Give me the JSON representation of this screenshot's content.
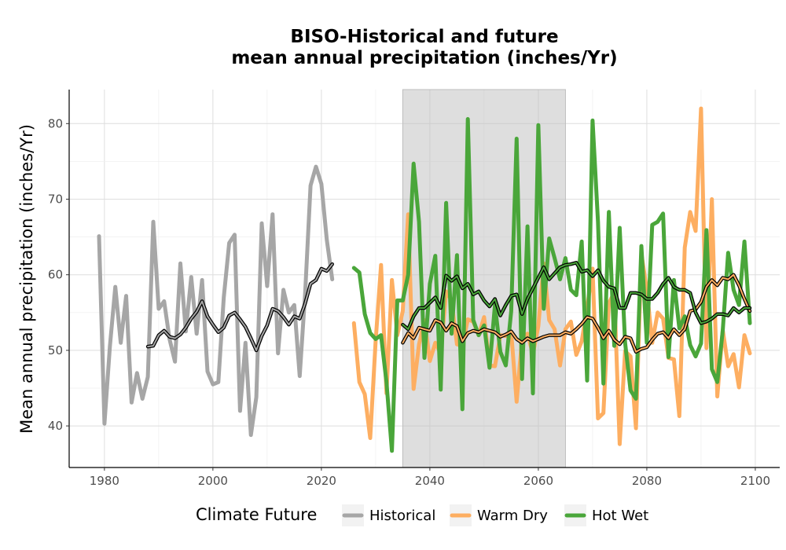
{
  "chart_data": {
    "type": "line",
    "title_lines": [
      "BISO-Historical and future",
      "mean annual precipitation (inches/Yr)"
    ],
    "xlabel": "",
    "ylabel": "Mean annual precipitation (inches/Yr)",
    "xlim": [
      1973.5,
      2104.5
    ],
    "ylim": [
      34.5,
      84.5
    ],
    "x_ticks": [
      1980,
      2000,
      2020,
      2040,
      2060,
      2080,
      2100
    ],
    "y_ticks": [
      40,
      50,
      60,
      70,
      80
    ],
    "grid": true,
    "reference_period": [
      2035,
      2065
    ],
    "legend": {
      "title": "Climate Future",
      "placement": "bottom",
      "entries": [
        {
          "label": "Historical",
          "color": "#a6a6a6"
        },
        {
          "label": "Warm Dry",
          "color": "#fdae61"
        },
        {
          "label": "Hot Wet",
          "color": "#4aa63a"
        }
      ]
    },
    "series": [
      {
        "name": "Historical",
        "color": "#a6a6a6",
        "x": [
          1979,
          1980,
          1981,
          1982,
          1983,
          1984,
          1985,
          1986,
          1987,
          1988,
          1989,
          1990,
          1991,
          1992,
          1993,
          1994,
          1995,
          1996,
          1997,
          1998,
          1999,
          2000,
          2001,
          2002,
          2003,
          2004,
          2005,
          2006,
          2007,
          2008,
          2009,
          2010,
          2011,
          2012,
          2013,
          2014,
          2015,
          2016,
          2017,
          2018,
          2019,
          2020,
          2021,
          2022
        ],
        "y": [
          65.1,
          40.3,
          50.5,
          58.4,
          51.0,
          57.2,
          43.1,
          47.0,
          43.6,
          46.5,
          67.0,
          55.5,
          56.5,
          51.5,
          48.5,
          61.5,
          52.5,
          59.7,
          52.2,
          59.3,
          47.2,
          45.5,
          45.8,
          57.0,
          64.2,
          65.3,
          42.0,
          51.0,
          38.8,
          43.8,
          66.8,
          58.5,
          68.0,
          49.6,
          58.0,
          55.0,
          56.0,
          46.6,
          57.5,
          71.8,
          74.3,
          72.0,
          64.6,
          59.4
        ]
      },
      {
        "name": "Historical rolling mean",
        "color": "#a6a6a6",
        "x": [
          1988,
          1989,
          1990,
          1991,
          1992,
          1993,
          1994,
          1995,
          1996,
          1997,
          1998,
          1999,
          2000,
          2001,
          2002,
          2003,
          2004,
          2005,
          2006,
          2007,
          2008,
          2009,
          2010,
          2011,
          2012,
          2013,
          2014,
          2015,
          2016,
          2017,
          2018,
          2019,
          2020,
          2021,
          2022
        ],
        "y": [
          50.5,
          50.6,
          52.0,
          52.6,
          51.8,
          51.6,
          52.1,
          53.0,
          54.2,
          55.1,
          56.5,
          54.5,
          53.4,
          52.4,
          53.0,
          54.6,
          55.0,
          54.1,
          53.1,
          51.6,
          50.0,
          51.9,
          53.3,
          55.5,
          55.2,
          54.4,
          53.4,
          54.5,
          54.2,
          56.2,
          58.8,
          59.3,
          60.8,
          60.5,
          61.4
        ]
      },
      {
        "name": "Warm Dry",
        "color": "#fdae61",
        "x": [
          2026,
          2027,
          2028,
          2029,
          2030,
          2031,
          2032,
          2033,
          2034,
          2035,
          2036,
          2037,
          2038,
          2039,
          2040,
          2041,
          2042,
          2043,
          2044,
          2045,
          2046,
          2047,
          2048,
          2049,
          2050,
          2051,
          2052,
          2053,
          2054,
          2055,
          2056,
          2057,
          2058,
          2059,
          2060,
          2061,
          2062,
          2063,
          2064,
          2065,
          2066,
          2067,
          2068,
          2069,
          2070,
          2071,
          2072,
          2073,
          2074,
          2075,
          2076,
          2077,
          2078,
          2079,
          2080,
          2081,
          2082,
          2083,
          2084,
          2085,
          2086,
          2087,
          2088,
          2089,
          2090,
          2091,
          2092,
          2093,
          2094,
          2095,
          2096,
          2097,
          2098,
          2099
        ],
        "y": [
          53.6,
          45.8,
          44.2,
          38.4,
          51.2,
          61.3,
          44.3,
          59.3,
          52.0,
          55.2,
          68.0,
          44.9,
          50.8,
          54.0,
          48.6,
          51.0,
          49.6,
          57.8,
          56.6,
          50.8,
          50.6,
          54.1,
          53.8,
          52.0,
          54.4,
          48.0,
          47.9,
          52.0,
          51.9,
          52.4,
          43.2,
          51.6,
          52.2,
          49.5,
          53.2,
          61.5,
          54.0,
          52.8,
          48.0,
          52.8,
          53.8,
          49.4,
          51.2,
          55.6,
          60.8,
          41.0,
          41.7,
          56.2,
          57.7,
          37.6,
          49.9,
          49.2,
          39.7,
          62.8,
          58.0,
          51.0,
          55.0,
          54.2,
          49.0,
          48.8,
          41.3,
          63.6,
          68.3,
          65.8,
          82.0,
          50.3,
          70.0,
          43.9,
          52.7,
          47.9,
          49.5,
          45.1,
          52.0,
          49.6
        ]
      },
      {
        "name": "Warm Dry rolling mean",
        "color": "#fdae61",
        "x": [
          2035,
          2036,
          2037,
          2038,
          2039,
          2040,
          2041,
          2042,
          2043,
          2044,
          2045,
          2046,
          2047,
          2048,
          2049,
          2050,
          2051,
          2052,
          2053,
          2054,
          2055,
          2056,
          2057,
          2058,
          2059,
          2060,
          2061,
          2062,
          2063,
          2064,
          2065,
          2066,
          2067,
          2068,
          2069,
          2070,
          2071,
          2072,
          2073,
          2074,
          2075,
          2076,
          2077,
          2078,
          2079,
          2080,
          2081,
          2082,
          2083,
          2084,
          2085,
          2086,
          2087,
          2088,
          2089,
          2090,
          2091,
          2092,
          2093,
          2094,
          2095,
          2096,
          2097,
          2098,
          2099
        ],
        "y": [
          51.0,
          52.3,
          51.6,
          53.0,
          52.8,
          52.6,
          54.0,
          53.7,
          52.6,
          53.6,
          53.2,
          51.2,
          52.3,
          52.6,
          52.4,
          52.8,
          52.6,
          52.4,
          51.8,
          52.1,
          52.5,
          51.5,
          51.0,
          51.6,
          51.2,
          51.5,
          51.8,
          52.0,
          52.0,
          52.0,
          52.4,
          52.2,
          52.8,
          53.5,
          54.4,
          54.2,
          53.0,
          51.6,
          52.6,
          51.4,
          50.8,
          51.8,
          51.6,
          49.8,
          50.2,
          50.4,
          51.4,
          52.2,
          52.4,
          51.6,
          52.8,
          52.0,
          52.8,
          55.2,
          55.4,
          56.4,
          58.4,
          59.3,
          58.6,
          59.6,
          59.4,
          60.0,
          58.6,
          56.8,
          55.2
        ]
      },
      {
        "name": "Hot Wet",
        "color": "#4aa63a",
        "x": [
          2026,
          2027,
          2028,
          2029,
          2030,
          2031,
          2032,
          2033,
          2034,
          2035,
          2036,
          2037,
          2038,
          2039,
          2040,
          2041,
          2042,
          2043,
          2044,
          2045,
          2046,
          2047,
          2048,
          2049,
          2050,
          2051,
          2052,
          2053,
          2054,
          2055,
          2056,
          2057,
          2058,
          2059,
          2060,
          2061,
          2062,
          2063,
          2064,
          2065,
          2066,
          2067,
          2068,
          2069,
          2070,
          2071,
          2072,
          2073,
          2074,
          2075,
          2076,
          2077,
          2078,
          2079,
          2080,
          2081,
          2082,
          2083,
          2084,
          2085,
          2086,
          2087,
          2088,
          2089,
          2090,
          2091,
          2092,
          2093,
          2094,
          2095,
          2096,
          2097,
          2098,
          2099
        ],
        "y": [
          60.9,
          60.3,
          54.8,
          52.3,
          51.5,
          52.0,
          45.8,
          36.7,
          56.6,
          56.6,
          60.0,
          74.7,
          67.0,
          49.0,
          58.8,
          62.5,
          44.8,
          69.5,
          52.2,
          62.6,
          42.2,
          80.6,
          54.0,
          52.0,
          53.3,
          47.7,
          56.0,
          49.8,
          48.0,
          55.2,
          78.0,
          46.2,
          66.4,
          44.3,
          79.8,
          55.5,
          64.8,
          62.2,
          59.4,
          62.2,
          58.0,
          57.3,
          64.4,
          46.0,
          80.4,
          67.0,
          45.6,
          68.3,
          50.6,
          66.2,
          51.0,
          44.7,
          43.6,
          63.8,
          51.0,
          66.6,
          67.0,
          68.1,
          49.1,
          59.3,
          52.9,
          54.5,
          50.7,
          49.2,
          50.9,
          65.9,
          47.5,
          45.8,
          52.6,
          62.9,
          58.0,
          56.0,
          64.4,
          53.6
        ]
      },
      {
        "name": "Hot Wet rolling mean",
        "color": "#4aa63a",
        "x": [
          2035,
          2036,
          2037,
          2038,
          2039,
          2040,
          2041,
          2042,
          2043,
          2044,
          2045,
          2046,
          2047,
          2048,
          2049,
          2050,
          2051,
          2052,
          2053,
          2054,
          2055,
          2056,
          2057,
          2058,
          2059,
          2060,
          2061,
          2062,
          2063,
          2064,
          2065,
          2066,
          2067,
          2068,
          2069,
          2070,
          2071,
          2072,
          2073,
          2074,
          2075,
          2076,
          2077,
          2078,
          2079,
          2080,
          2081,
          2082,
          2083,
          2084,
          2085,
          2086,
          2087,
          2088,
          2089,
          2090,
          2091,
          2092,
          2093,
          2094,
          2095,
          2096,
          2097,
          2098,
          2099
        ],
        "y": [
          53.4,
          52.8,
          54.5,
          55.6,
          55.6,
          56.3,
          57.0,
          55.6,
          59.9,
          59.2,
          59.8,
          58.2,
          58.8,
          57.4,
          57.8,
          56.6,
          55.8,
          56.8,
          54.6,
          56.0,
          57.2,
          57.4,
          54.8,
          56.8,
          58.2,
          59.6,
          61.0,
          59.4,
          60.2,
          61.0,
          61.3,
          61.4,
          61.6,
          60.4,
          60.6,
          59.8,
          60.6,
          59.2,
          58.4,
          58.2,
          55.6,
          55.6,
          57.6,
          57.6,
          57.4,
          56.8,
          56.8,
          57.6,
          58.8,
          59.6,
          58.4,
          58.0,
          58.0,
          57.6,
          55.0,
          53.6,
          53.8,
          54.2,
          54.8,
          54.8,
          54.6,
          55.6,
          55.0,
          55.6,
          55.6
        ]
      }
    ]
  }
}
